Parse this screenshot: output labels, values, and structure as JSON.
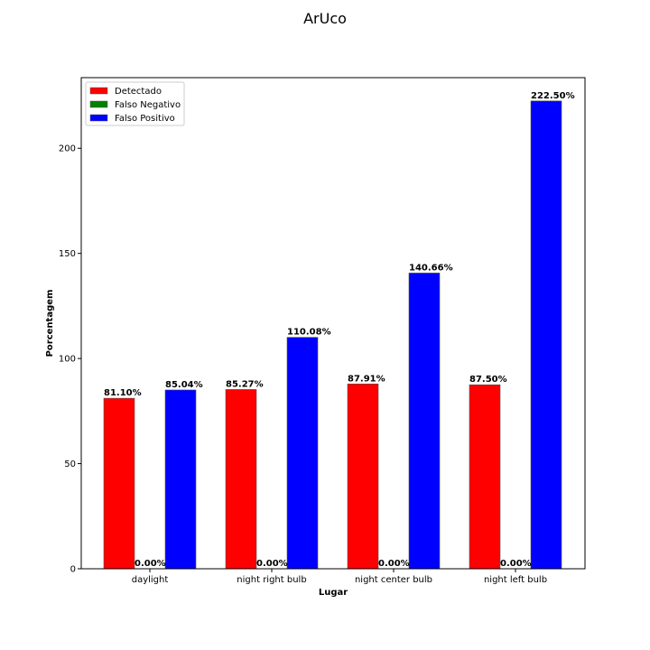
{
  "chart_data": {
    "type": "bar",
    "title": "ArUco",
    "xlabel": "Lugar",
    "ylabel": "Porcentagem",
    "categories": [
      "daylight",
      "night right bulb",
      "night center bulb",
      "night left bulb"
    ],
    "series": [
      {
        "name": "Detectado",
        "color": "#ff0000",
        "values": [
          81.1,
          85.27,
          87.91,
          87.5
        ],
        "labels": [
          "81.10%",
          "85.27%",
          "87.91%",
          "87.50%"
        ]
      },
      {
        "name": "Falso Negativo",
        "color": "#008000",
        "values": [
          0.0,
          0.0,
          0.0,
          0.0
        ],
        "labels": [
          "0.00%",
          "0.00%",
          "0.00%",
          "0.00%"
        ]
      },
      {
        "name": "Falso Positivo",
        "color": "#0000ff",
        "values": [
          85.04,
          110.08,
          140.66,
          222.5
        ],
        "labels": [
          "85.04%",
          "110.08%",
          "140.66%",
          "222.50%"
        ]
      }
    ],
    "yticks": [
      0,
      50,
      100,
      150,
      200
    ],
    "ylim": [
      0,
      233.6
    ],
    "legend_position": "top-left",
    "grid": false
  }
}
